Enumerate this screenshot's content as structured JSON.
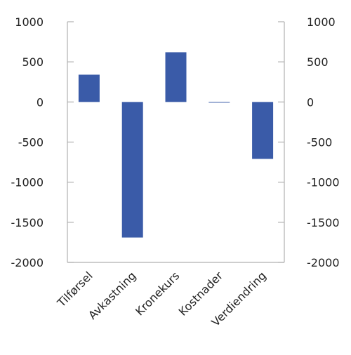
{
  "chart_data": {
    "type": "bar",
    "categories": [
      "Tilførsel",
      "Avkastning",
      "Kronekurs",
      "Kostnader",
      "Verdiendring"
    ],
    "values": [
      340,
      -1690,
      620,
      -5,
      -710
    ],
    "ylim": [
      -2000,
      1000
    ],
    "yticks": [
      1000,
      500,
      0,
      -500,
      -1000,
      -1500,
      -2000
    ],
    "ytick_labels": [
      "1000",
      "500",
      "0",
      "-500",
      "-1000",
      "-1500",
      "-2000"
    ],
    "y_axis_both_sides": true,
    "grid": false,
    "bar_color": "#3a5ba8",
    "axis_color": "#b0b0b0",
    "title": "",
    "xlabel": "",
    "ylabel": ""
  }
}
